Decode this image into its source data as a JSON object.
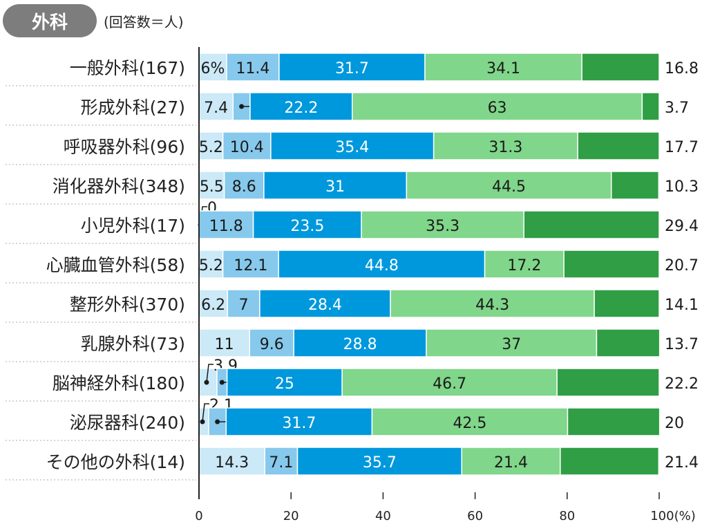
{
  "header": {
    "badge": "外科",
    "note": "(回答数＝人)"
  },
  "chart_data": {
    "type": "bar",
    "orientation": "horizontal",
    "stacked": true,
    "unit": "%",
    "categories": [
      "一般外科(167)",
      "形成外科(27)",
      "呼吸器外科(96)",
      "消化器外科(348)",
      "小児外科(17)",
      "心臓血管外科(58)",
      "整形外科(370)",
      "乳腺外科(73)",
      "脳神経外科(180)",
      "泌尿器科(240)",
      "その他の外科(14)"
    ],
    "series_colors": [
      "#cbe9f7",
      "#86c9ec",
      "#0098dc",
      "#80d68a",
      "#2f9e45"
    ],
    "values": [
      [
        6,
        11.4,
        31.7,
        34.1,
        16.8
      ],
      [
        7.4,
        3.7,
        22.2,
        63,
        3.7
      ],
      [
        5.2,
        10.4,
        35.4,
        31.3,
        17.7
      ],
      [
        5.5,
        8.6,
        31,
        44.5,
        10.3
      ],
      [
        0,
        11.8,
        23.5,
        35.3,
        29.4
      ],
      [
        5.2,
        12.1,
        44.8,
        17.2,
        20.7
      ],
      [
        6.2,
        7,
        28.4,
        44.3,
        14.1
      ],
      [
        11,
        9.6,
        28.8,
        37,
        13.7
      ],
      [
        3.9,
        2.2,
        25,
        46.7,
        22.2
      ],
      [
        2.1,
        3.8,
        31.7,
        42.5,
        20
      ],
      [
        14.3,
        7.1,
        35.7,
        21.4,
        21.4
      ]
    ],
    "xlim": [
      0,
      100
    ],
    "xticks": [
      "0",
      "20",
      "40",
      "60",
      "80",
      "100(%)"
    ],
    "grid": false
  }
}
